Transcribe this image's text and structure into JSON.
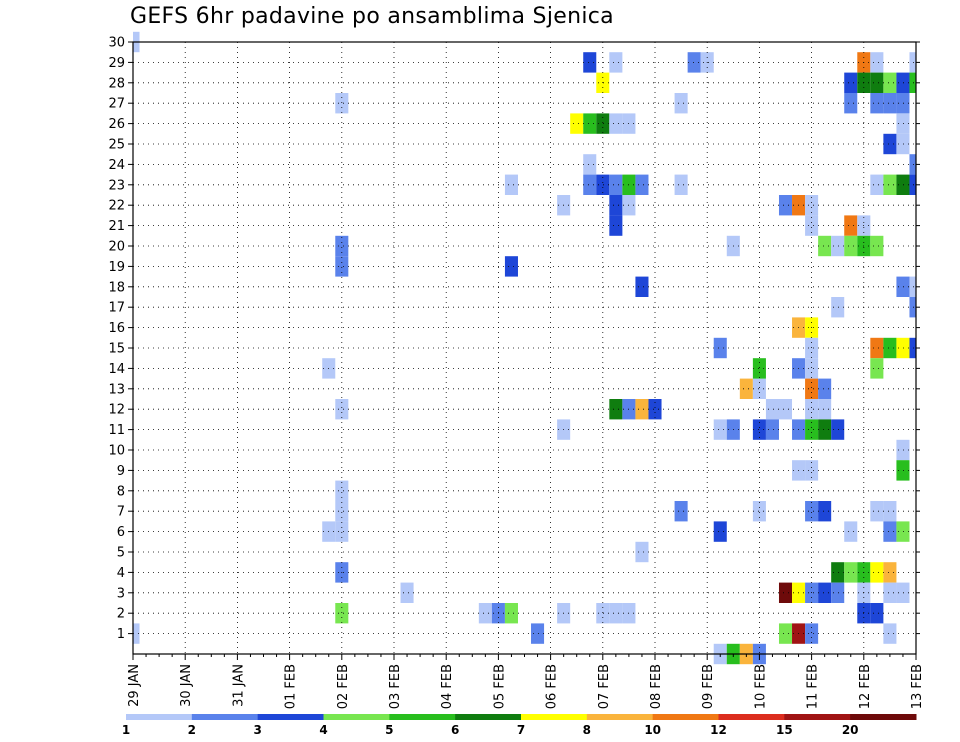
{
  "chart_data": {
    "type": "heatmap",
    "title": "GEFS 6hr padavine po ansamblima Sjenica",
    "x_tick_labels": [
      "29 JAN",
      "30 JAN",
      "31 JAN",
      "01 FEB",
      "02 FEB",
      "03 FEB",
      "04 FEB",
      "05 FEB",
      "06 FEB",
      "07 FEB",
      "08 FEB",
      "09 FEB",
      "10 FEB",
      "11 FEB",
      "12 FEB",
      "13 FEB"
    ],
    "x_steps_per_day": 4,
    "x_range_steps": [
      0,
      60
    ],
    "y_tick_labels": [
      "1",
      "2",
      "3",
      "4",
      "5",
      "6",
      "7",
      "8",
      "9",
      "10",
      "11",
      "12",
      "13",
      "14",
      "15",
      "16",
      "17",
      "18",
      "19",
      "20",
      "21",
      "22",
      "23",
      "24",
      "25",
      "26",
      "27",
      "28",
      "29",
      "30"
    ],
    "y_range": [
      0,
      30
    ],
    "grid": true,
    "colorbar": {
      "levels": [
        "1",
        "2",
        "3",
        "4",
        "5",
        "6",
        "7",
        "8",
        "10",
        "12",
        "15",
        "20"
      ],
      "colors": [
        "#b4c8f8",
        "#5a82eb",
        "#1e46d7",
        "#78e650",
        "#28be1e",
        "#0f7d0f",
        "#ffff00",
        "#fab43c",
        "#f07814",
        "#dc2d1e",
        "#a01414",
        "#6e0a0a"
      ]
    },
    "cells": [
      {
        "s": 0,
        "m": 1,
        "c": 0
      },
      {
        "s": 0,
        "m": 30,
        "c": 0
      },
      {
        "s": 15,
        "m": 14,
        "c": 0
      },
      {
        "s": 15,
        "m": 6,
        "c": 0
      },
      {
        "s": 16,
        "m": 19,
        "c": 1
      },
      {
        "s": 16,
        "m": 20,
        "c": 1
      },
      {
        "s": 16,
        "m": 27,
        "c": 0
      },
      {
        "s": 16,
        "m": 12,
        "c": 0
      },
      {
        "s": 16,
        "m": 8,
        "c": 0
      },
      {
        "s": 16,
        "m": 7,
        "c": 0
      },
      {
        "s": 16,
        "m": 6,
        "c": 0
      },
      {
        "s": 16,
        "m": 4,
        "c": 1
      },
      {
        "s": 16,
        "m": 2,
        "c": 3
      },
      {
        "s": 21,
        "m": 3,
        "c": 0
      },
      {
        "s": 27,
        "m": 2,
        "c": 0
      },
      {
        "s": 28,
        "m": 2,
        "c": 1
      },
      {
        "s": 29,
        "m": 2,
        "c": 3
      },
      {
        "s": 29,
        "m": 23,
        "c": 0
      },
      {
        "s": 29,
        "m": 19,
        "c": 2
      },
      {
        "s": 31,
        "m": 1,
        "c": 1
      },
      {
        "s": 33,
        "m": 22,
        "c": 0
      },
      {
        "s": 33,
        "m": 11,
        "c": 0
      },
      {
        "s": 33,
        "m": 2,
        "c": 0
      },
      {
        "s": 34,
        "m": 26,
        "c": 6
      },
      {
        "s": 35,
        "m": 26,
        "c": 4
      },
      {
        "s": 36,
        "m": 26,
        "c": 5
      },
      {
        "s": 37,
        "m": 26,
        "c": 0
      },
      {
        "s": 38,
        "m": 26,
        "c": 0
      },
      {
        "s": 35,
        "m": 29,
        "c": 2
      },
      {
        "s": 35,
        "m": 24,
        "c": 0
      },
      {
        "s": 35,
        "m": 23,
        "c": 1
      },
      {
        "s": 36,
        "m": 23,
        "c": 2
      },
      {
        "s": 37,
        "m": 23,
        "c": 1
      },
      {
        "s": 38,
        "m": 23,
        "c": 4
      },
      {
        "s": 39,
        "m": 23,
        "c": 1
      },
      {
        "s": 36,
        "m": 28,
        "c": 6
      },
      {
        "s": 37,
        "m": 29,
        "c": 0
      },
      {
        "s": 37,
        "m": 22,
        "c": 2
      },
      {
        "s": 37,
        "m": 21,
        "c": 2
      },
      {
        "s": 38,
        "m": 22,
        "c": 0
      },
      {
        "s": 39,
        "m": 18,
        "c": 2
      },
      {
        "s": 37,
        "m": 12,
        "c": 5
      },
      {
        "s": 38,
        "m": 12,
        "c": 1
      },
      {
        "s": 39,
        "m": 12,
        "c": 7
      },
      {
        "s": 40,
        "m": 12,
        "c": 2
      },
      {
        "s": 39,
        "m": 5,
        "c": 0
      },
      {
        "s": 36,
        "m": 2,
        "c": 0
      },
      {
        "s": 37,
        "m": 2,
        "c": 0
      },
      {
        "s": 38,
        "m": 2,
        "c": 0
      },
      {
        "s": 42,
        "m": 27,
        "c": 0
      },
      {
        "s": 42,
        "m": 23,
        "c": 0
      },
      {
        "s": 42,
        "m": 7,
        "c": 1
      },
      {
        "s": 43,
        "m": 29,
        "c": 1
      },
      {
        "s": 44,
        "m": 29,
        "c": 0
      },
      {
        "s": 45,
        "m": 15,
        "c": 1
      },
      {
        "s": 45,
        "m": 11,
        "c": 0
      },
      {
        "s": 45,
        "m": 6,
        "c": 2
      },
      {
        "s": 45,
        "m": 0,
        "c": 0
      },
      {
        "s": 46,
        "m": 20,
        "c": 0
      },
      {
        "s": 46,
        "m": 11,
        "c": 1
      },
      {
        "s": 46,
        "m": 0,
        "c": 4
      },
      {
        "s": 47,
        "m": 0,
        "c": 7
      },
      {
        "s": 48,
        "m": 0,
        "c": 1
      },
      {
        "s": 47,
        "m": 13,
        "c": 7
      },
      {
        "s": 48,
        "m": 13,
        "c": 0
      },
      {
        "s": 48,
        "m": 14,
        "c": 4
      },
      {
        "s": 48,
        "m": 11,
        "c": 2
      },
      {
        "s": 48,
        "m": 7,
        "c": 0
      },
      {
        "s": 49,
        "m": 12,
        "c": 0
      },
      {
        "s": 49,
        "m": 11,
        "c": 1
      },
      {
        "s": 50,
        "m": 12,
        "c": 0
      },
      {
        "s": 50,
        "m": 22,
        "c": 1
      },
      {
        "s": 50,
        "m": 3,
        "c": 11
      },
      {
        "s": 50,
        "m": 1,
        "c": 3
      },
      {
        "s": 51,
        "m": 22,
        "c": 8
      },
      {
        "s": 51,
        "m": 16,
        "c": 7
      },
      {
        "s": 51,
        "m": 14,
        "c": 1
      },
      {
        "s": 51,
        "m": 11,
        "c": 1
      },
      {
        "s": 51,
        "m": 9,
        "c": 0
      },
      {
        "s": 51,
        "m": 3,
        "c": 6
      },
      {
        "s": 51,
        "m": 1,
        "c": 10
      },
      {
        "s": 52,
        "m": 22,
        "c": 0
      },
      {
        "s": 52,
        "m": 21,
        "c": 0
      },
      {
        "s": 52,
        "m": 16,
        "c": 6
      },
      {
        "s": 52,
        "m": 15,
        "c": 0
      },
      {
        "s": 52,
        "m": 14,
        "c": 0
      },
      {
        "s": 52,
        "m": 13,
        "c": 8
      },
      {
        "s": 52,
        "m": 12,
        "c": 0
      },
      {
        "s": 52,
        "m": 11,
        "c": 4
      },
      {
        "s": 52,
        "m": 9,
        "c": 0
      },
      {
        "s": 52,
        "m": 7,
        "c": 1
      },
      {
        "s": 52,
        "m": 3,
        "c": 1
      },
      {
        "s": 52,
        "m": 1,
        "c": 1
      },
      {
        "s": 53,
        "m": 20,
        "c": 3
      },
      {
        "s": 53,
        "m": 13,
        "c": 1
      },
      {
        "s": 53,
        "m": 12,
        "c": 0
      },
      {
        "s": 53,
        "m": 11,
        "c": 5
      },
      {
        "s": 53,
        "m": 7,
        "c": 2
      },
      {
        "s": 53,
        "m": 3,
        "c": 2
      },
      {
        "s": 54,
        "m": 20,
        "c": 0
      },
      {
        "s": 54,
        "m": 17,
        "c": 0
      },
      {
        "s": 54,
        "m": 11,
        "c": 2
      },
      {
        "s": 54,
        "m": 4,
        "c": 5
      },
      {
        "s": 54,
        "m": 3,
        "c": 1
      },
      {
        "s": 55,
        "m": 28,
        "c": 2
      },
      {
        "s": 55,
        "m": 27,
        "c": 1
      },
      {
        "s": 55,
        "m": 21,
        "c": 8
      },
      {
        "s": 55,
        "m": 20,
        "c": 3
      },
      {
        "s": 55,
        "m": 6,
        "c": 0
      },
      {
        "s": 55,
        "m": 4,
        "c": 3
      },
      {
        "s": 56,
        "m": 29,
        "c": 8
      },
      {
        "s": 56,
        "m": 28,
        "c": 5
      },
      {
        "s": 56,
        "m": 21,
        "c": 0
      },
      {
        "s": 56,
        "m": 20,
        "c": 4
      },
      {
        "s": 56,
        "m": 4,
        "c": 4
      },
      {
        "s": 56,
        "m": 3,
        "c": 0
      },
      {
        "s": 56,
        "m": 2,
        "c": 2
      },
      {
        "s": 57,
        "m": 29,
        "c": 0
      },
      {
        "s": 57,
        "m": 28,
        "c": 5
      },
      {
        "s": 57,
        "m": 27,
        "c": 1
      },
      {
        "s": 57,
        "m": 23,
        "c": 0
      },
      {
        "s": 57,
        "m": 20,
        "c": 3
      },
      {
        "s": 57,
        "m": 15,
        "c": 8
      },
      {
        "s": 57,
        "m": 14,
        "c": 3
      },
      {
        "s": 57,
        "m": 7,
        "c": 0
      },
      {
        "s": 57,
        "m": 4,
        "c": 6
      },
      {
        "s": 57,
        "m": 2,
        "c": 2
      },
      {
        "s": 58,
        "m": 28,
        "c": 3
      },
      {
        "s": 58,
        "m": 27,
        "c": 1
      },
      {
        "s": 58,
        "m": 25,
        "c": 2
      },
      {
        "s": 58,
        "m": 23,
        "c": 3
      },
      {
        "s": 58,
        "m": 15,
        "c": 4
      },
      {
        "s": 58,
        "m": 7,
        "c": 0
      },
      {
        "s": 58,
        "m": 6,
        "c": 1
      },
      {
        "s": 58,
        "m": 4,
        "c": 7
      },
      {
        "s": 58,
        "m": 3,
        "c": 0
      },
      {
        "s": 58,
        "m": 1,
        "c": 0
      },
      {
        "s": 59,
        "m": 28,
        "c": 2
      },
      {
        "s": 59,
        "m": 27,
        "c": 1
      },
      {
        "s": 59,
        "m": 26,
        "c": 0
      },
      {
        "s": 59,
        "m": 25,
        "c": 0
      },
      {
        "s": 59,
        "m": 23,
        "c": 5
      },
      {
        "s": 59,
        "m": 18,
        "c": 1
      },
      {
        "s": 59,
        "m": 15,
        "c": 6
      },
      {
        "s": 59,
        "m": 10,
        "c": 0
      },
      {
        "s": 59,
        "m": 9,
        "c": 4
      },
      {
        "s": 59,
        "m": 6,
        "c": 3
      },
      {
        "s": 59,
        "m": 3,
        "c": 0
      },
      {
        "s": 60,
        "m": 29,
        "c": 0
      },
      {
        "s": 60,
        "m": 28,
        "c": 4
      },
      {
        "s": 60,
        "m": 24,
        "c": 1
      },
      {
        "s": 60,
        "m": 23,
        "c": 2
      },
      {
        "s": 60,
        "m": 18,
        "c": 0
      },
      {
        "s": 60,
        "m": 17,
        "c": 1
      },
      {
        "s": 60,
        "m": 15,
        "c": 2
      }
    ]
  }
}
